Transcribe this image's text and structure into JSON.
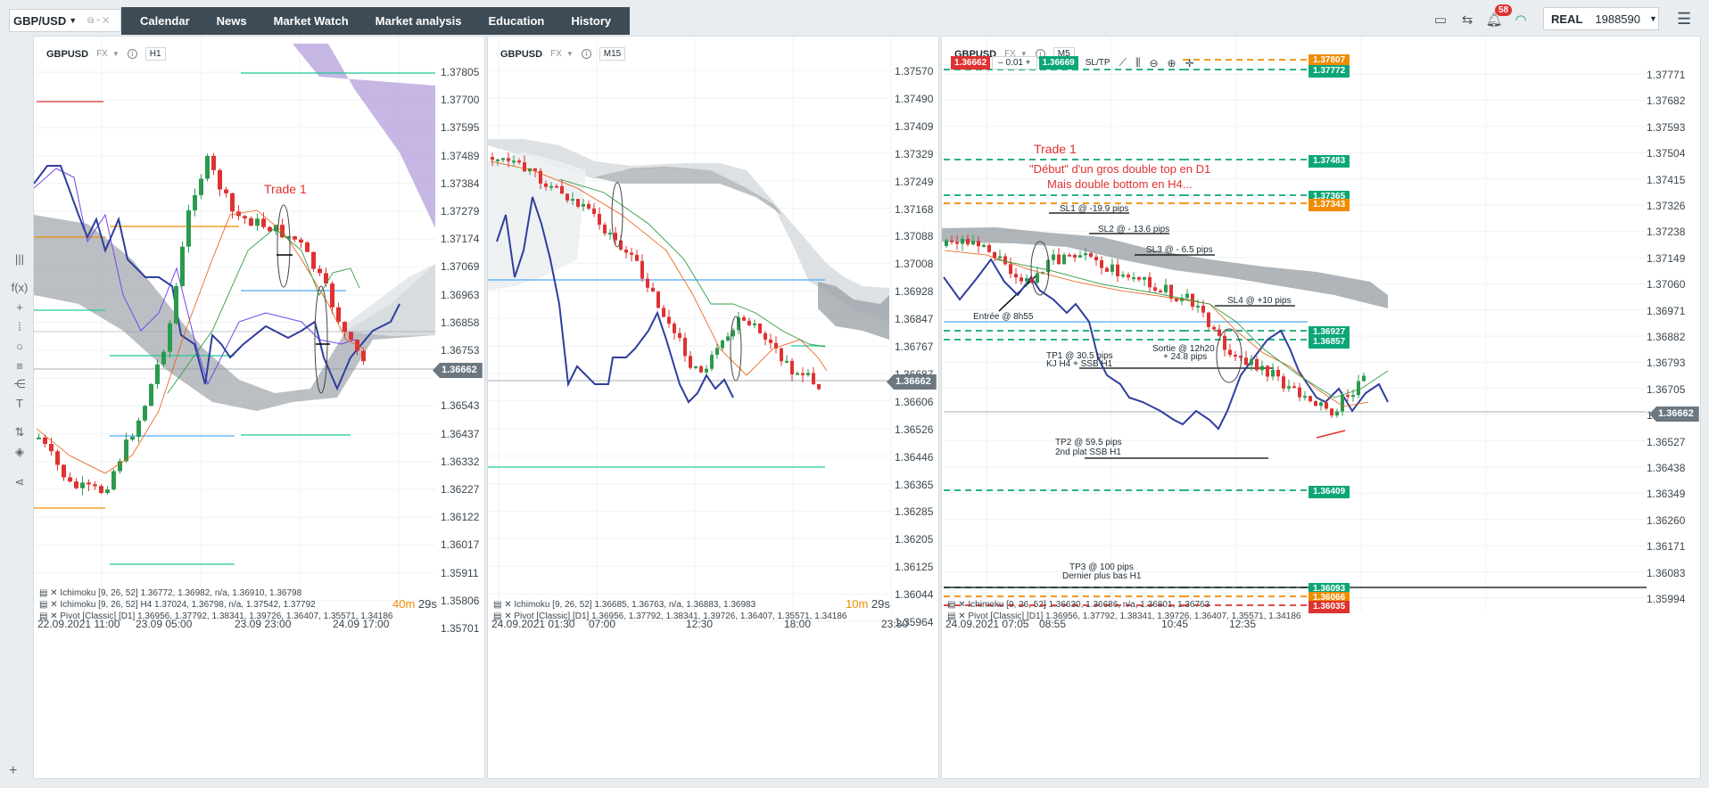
{
  "topbar": {
    "symbol": "GBP/USD",
    "nav": [
      "Calendar",
      "News",
      "Market Watch",
      "Market analysis",
      "Education",
      "History"
    ],
    "notifications": "58",
    "account_mode": "REAL",
    "account_number": "1988590"
  },
  "icons": [
    "layout-icon",
    "exchange-icon",
    "bell-icon",
    "wifi-icon",
    "hamburger-menu-icon"
  ],
  "toolbar_icons": [
    "bars-icon",
    "function-icon",
    "crosshair-icon",
    "vertical-line-icon",
    "circle-icon",
    "fibonacci-icon",
    "pitchfork-icon",
    "text-icon",
    "sync-icon",
    "layers-icon",
    "share-icon"
  ],
  "panels": [
    {
      "symbol": "GBPUSD",
      "market": "FX",
      "timeframe": "H1",
      "price_axis": [
        "1.37805",
        "1.37700",
        "1.37595",
        "1.37489",
        "1.37384",
        "1.37279",
        "1.37174",
        "1.37069",
        "1.36963",
        "1.36858",
        "1.36753",
        "1.36543",
        "1.36437",
        "1.36332",
        "1.36227",
        "1.36122",
        "1.36017",
        "1.35911",
        "1.35806",
        "1.35701"
      ],
      "current_price": "1.36662",
      "time_axis": [
        "22.09.2021 11:00",
        "23.09 05:00",
        "23.09 23:00",
        "24.09 17:00"
      ],
      "indicators": [
        "Ichimoku [9, 26, 52] 1.36772, 1.36982, n/a, 1.36910, 1.36798",
        "Ichimoku [9, 26, 52] H4 1.37024, 1.36798, n/a, 1.37542, 1.37792",
        "Pivot [Classic] [D1] 1.36956, 1.37792, 1.38341, 1.39726, 1.36407, 1.35571, 1.34186"
      ],
      "countdown_min": "40m",
      "countdown_sec": "29s",
      "annotation": "Trade 1"
    },
    {
      "symbol": "GBPUSD",
      "market": "FX",
      "timeframe": "M15",
      "price_axis": [
        "1.37570",
        "1.37490",
        "1.37409",
        "1.37329",
        "1.37249",
        "1.37168",
        "1.37088",
        "1.37008",
        "1.36928",
        "1.36847",
        "1.36767",
        "1.36687",
        "1.36606",
        "1.36526",
        "1.36446",
        "1.36365",
        "1.36285",
        "1.36205",
        "1.36125",
        "1.36044",
        "1.35964"
      ],
      "current_price": "1.36662",
      "time_axis": [
        "24.09.2021 01:30",
        "07:00",
        "12:30",
        "18:00",
        "23:30"
      ],
      "indicators": [
        "Ichimoku [9, 26, 52] 1.36685, 1.36763, n/a, 1.36883, 1.36983",
        "Pivot [Classic] [D1] 1.36956, 1.37792, 1.38341, 1.39726, 1.36407, 1.35571, 1.34186"
      ],
      "countdown_min": "10m",
      "countdown_sec": "29s"
    },
    {
      "symbol": "GBPUSD",
      "market": "FX",
      "timeframe": "M5",
      "order": {
        "sell": "1.36662",
        "qty": "0.01",
        "buy": "1.36669",
        "sltp": "SL/TP"
      },
      "price_axis": [
        "1.37771",
        "1.37682",
        "1.37593",
        "1.37504",
        "1.37415",
        "1.37326",
        "1.37238",
        "1.37149",
        "1.37060",
        "1.36971",
        "1.36882",
        "1.36793",
        "1.36705",
        "1.36616",
        "1.36527",
        "1.36438",
        "1.36349",
        "1.36260",
        "1.36171",
        "1.36083",
        "1.35994"
      ],
      "current_price": "1.36662",
      "level_tags": {
        "t1": "1.37807",
        "t2": "1.37772",
        "t3": "1.37483",
        "t4": "1.37365",
        "t5": "1.37343",
        "t6": "1.36927",
        "t7": "1.36857",
        "t8": "1.36409",
        "t9": "1.36093",
        "t10": "1.36066",
        "t11": "1.36035"
      },
      "time_axis": [
        "24.09.2021 07:05",
        "08:55",
        "10:45",
        "12:35"
      ],
      "indicators": [
        "Ichimoku [9, 26, 52] 1.36630, 1.36686, n/a, 1.36801, 1.36763",
        "Pivot [Classic] [D1] 1.36956, 1.37792, 1.38341, 1.39726, 1.36407, 1.35571, 1.34186"
      ],
      "notes": {
        "trade": "Trade 1",
        "line2": "\"Début\" d'un gros double top en D1",
        "line3": "Mais double bottom en H4...",
        "sl1": "SL1 @ -19.9 pips",
        "sl2": "SL2 @ - 13.6 pips",
        "sl3": "SL3 @ - 6.5 pips",
        "sl4": "SL4 @ +10 pips",
        "entry": "Entrée @ 8h55",
        "tp1a": "TP1 @ 30.5 pips",
        "tp1b": "KJ H4 + SSB H1",
        "exit_a": "Sortie @ 12h20",
        "exit_b": "+ 24.8 pips",
        "tp2a": "TP2 @ 59.5 pips",
        "tp2b": "2nd plat SSB H1",
        "tp3a": "TP3 @ 100 pips",
        "tp3b": "Dernier plus bas H1"
      }
    }
  ]
}
